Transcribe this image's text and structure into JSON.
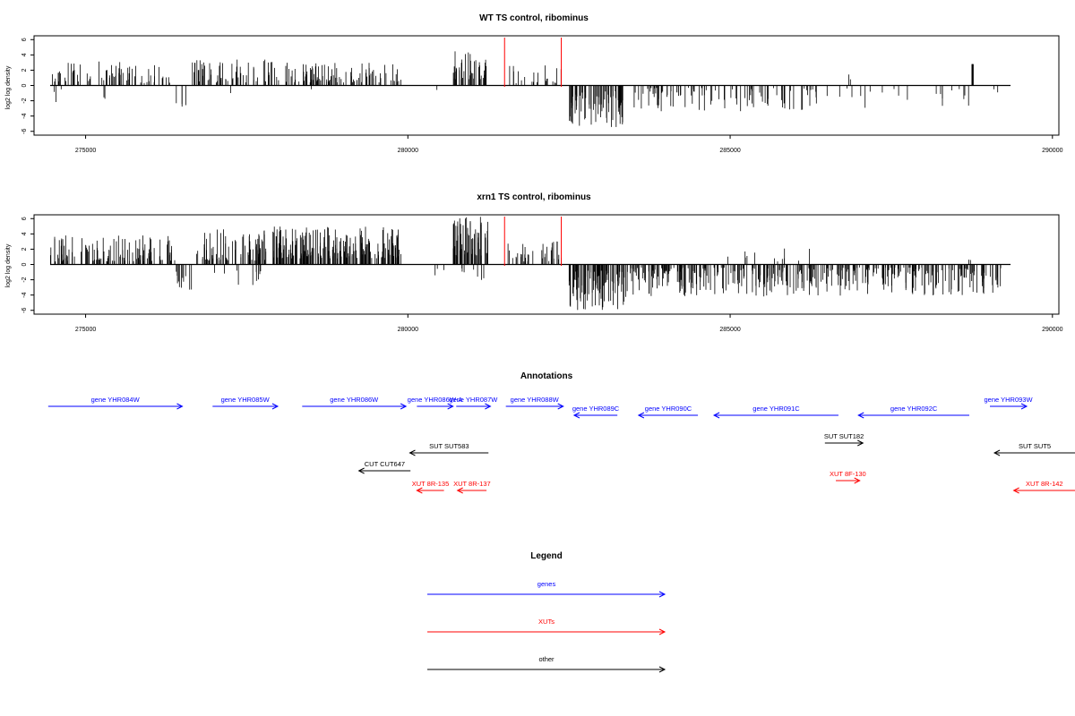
{
  "chart_data": [
    {
      "type": "bar",
      "title": "WT TS control, ribominus",
      "xlabel": "",
      "ylabel": "log2 log density",
      "xlim": [
        274200,
        290100
      ],
      "ylim": [
        -6.5,
        6.5
      ],
      "xticks": [
        275000,
        280000,
        285000,
        290000
      ],
      "yticks": [
        6,
        4,
        2,
        0,
        -2,
        -4,
        -6
      ],
      "highlight_x": [
        281500,
        282380
      ],
      "highlight_color": "#ff0000",
      "bar_color": "#000000",
      "segments": [
        {
          "x0": 274450,
          "x1": 274700,
          "density": 0.55,
          "mag": [
            0.4,
            2.2
          ],
          "sign": 1
        },
        {
          "x0": 274500,
          "x1": 274650,
          "density": 0.25,
          "mag": [
            0.5,
            2.5
          ],
          "sign": -1
        },
        {
          "x0": 274700,
          "x1": 276400,
          "density": 0.5,
          "mag": [
            0.3,
            3.2
          ],
          "sign": 1
        },
        {
          "x0": 274900,
          "x1": 275300,
          "density": 0.08,
          "mag": [
            0.3,
            1.8
          ],
          "sign": -1
        },
        {
          "x0": 276400,
          "x1": 276600,
          "density": 0.3,
          "mag": [
            0.4,
            3.3
          ],
          "sign": -1
        },
        {
          "x0": 276650,
          "x1": 278000,
          "density": 0.65,
          "mag": [
            0.4,
            3.4
          ],
          "sign": 1
        },
        {
          "x0": 277100,
          "x1": 277400,
          "density": 0.06,
          "mag": [
            0.5,
            2.4
          ],
          "sign": -1
        },
        {
          "x0": 278100,
          "x1": 279900,
          "density": 0.75,
          "mag": [
            0.4,
            3.0
          ],
          "sign": 1
        },
        {
          "x0": 278400,
          "x1": 278600,
          "density": 0.06,
          "mag": [
            0.4,
            1.6
          ],
          "sign": -1
        },
        {
          "x0": 280400,
          "x1": 280500,
          "density": 0.2,
          "mag": [
            0.5,
            1.5
          ],
          "sign": -1
        },
        {
          "x0": 280700,
          "x1": 281250,
          "density": 1.0,
          "mag": [
            0.8,
            4.5
          ],
          "sign": 1
        },
        {
          "x0": 281550,
          "x1": 282400,
          "density": 0.35,
          "mag": [
            0.3,
            2.8
          ],
          "sign": 1
        },
        {
          "x0": 282500,
          "x1": 283350,
          "density": 1.2,
          "mag": [
            0.6,
            5.6
          ],
          "sign": -1
        },
        {
          "x0": 283500,
          "x1": 286400,
          "density": 0.45,
          "mag": [
            0.3,
            3.4
          ],
          "sign": -1
        },
        {
          "x0": 286500,
          "x1": 288850,
          "density": 0.12,
          "mag": [
            0.4,
            3.0
          ],
          "sign": -1
        },
        {
          "x0": 286800,
          "x1": 287000,
          "density": 0.15,
          "mag": [
            0.8,
            2.0
          ],
          "sign": 1
        },
        {
          "x0": 288750,
          "x1": 288800,
          "density": 1.0,
          "mag": [
            2.8,
            2.8
          ],
          "sign": 1
        },
        {
          "x0": 288900,
          "x1": 289200,
          "density": 0.1,
          "mag": [
            0.5,
            2.0
          ],
          "sign": -1
        }
      ]
    },
    {
      "type": "bar",
      "title": "xrn1 TS control, ribominus",
      "xlabel": "",
      "ylabel": "log2 log density",
      "xlim": [
        274200,
        290100
      ],
      "ylim": [
        -6.5,
        6.5
      ],
      "xticks": [
        275000,
        280000,
        285000,
        290000
      ],
      "yticks": [
        6,
        4,
        2,
        0,
        -2,
        -4,
        -6
      ],
      "highlight_x": [
        281500,
        282380
      ],
      "highlight_color": "#ff0000",
      "bar_color": "#000000",
      "segments": [
        {
          "x0": 274450,
          "x1": 276400,
          "density": 0.85,
          "mag": [
            0.4,
            3.8
          ],
          "sign": 1
        },
        {
          "x0": 276400,
          "x1": 276650,
          "density": 0.6,
          "mag": [
            0.6,
            3.8
          ],
          "sign": -1
        },
        {
          "x0": 276700,
          "x1": 277800,
          "density": 1.0,
          "mag": [
            0.5,
            4.6
          ],
          "sign": 1
        },
        {
          "x0": 277000,
          "x1": 277900,
          "density": 0.15,
          "mag": [
            0.5,
            2.8
          ],
          "sign": -1
        },
        {
          "x0": 277900,
          "x1": 279900,
          "density": 1.4,
          "mag": [
            0.8,
            5.0
          ],
          "sign": 1
        },
        {
          "x0": 280400,
          "x1": 280600,
          "density": 0.2,
          "mag": [
            0.5,
            2.0
          ],
          "sign": -1
        },
        {
          "x0": 280700,
          "x1": 281250,
          "density": 1.5,
          "mag": [
            1.0,
            6.4
          ],
          "sign": 1
        },
        {
          "x0": 280800,
          "x1": 281200,
          "density": 0.25,
          "mag": [
            0.5,
            2.2
          ],
          "sign": -1
        },
        {
          "x0": 281550,
          "x1": 282400,
          "density": 0.6,
          "mag": [
            0.4,
            3.2
          ],
          "sign": 1
        },
        {
          "x0": 282500,
          "x1": 283400,
          "density": 1.4,
          "mag": [
            0.8,
            6.0
          ],
          "sign": -1
        },
        {
          "x0": 283400,
          "x1": 289200,
          "density": 0.9,
          "mag": [
            0.4,
            4.2
          ],
          "sign": -1
        },
        {
          "x0": 284800,
          "x1": 286500,
          "density": 0.1,
          "mag": [
            0.4,
            2.2
          ],
          "sign": 1
        },
        {
          "x0": 288700,
          "x1": 288800,
          "density": 0.3,
          "mag": [
            0.4,
            0.9
          ],
          "sign": 1
        }
      ]
    },
    {
      "type": "diagram",
      "title": "Annotations",
      "xlim": [
        274200,
        290100
      ],
      "features": [
        {
          "label": "gene YHR084W",
          "start": 274420,
          "end": 276500,
          "dir": 1,
          "track": 1,
          "color": "#0000ff"
        },
        {
          "label": "gene YHR085W",
          "start": 276970,
          "end": 277980,
          "dir": 1,
          "track": 1,
          "color": "#0000ff"
        },
        {
          "label": "gene YHR086W",
          "start": 278360,
          "end": 279970,
          "dir": 1,
          "track": 1,
          "color": "#0000ff"
        },
        {
          "label": "gene YHR086W-A",
          "start": 280140,
          "end": 280700,
          "dir": 1,
          "track": 1,
          "color": "#0000ff"
        },
        {
          "label": "gene YHR087W",
          "start": 280750,
          "end": 281280,
          "dir": 1,
          "track": 1,
          "color": "#0000ff"
        },
        {
          "label": "gene YHR088W",
          "start": 281520,
          "end": 282410,
          "dir": 1,
          "track": 1,
          "color": "#0000ff"
        },
        {
          "label": "gene YHR089C",
          "start": 282580,
          "end": 283250,
          "dir": -1,
          "track": 2,
          "color": "#0000ff"
        },
        {
          "label": "gene YHR090C",
          "start": 283580,
          "end": 284500,
          "dir": -1,
          "track": 2,
          "color": "#0000ff"
        },
        {
          "label": "gene YHR091C",
          "start": 284750,
          "end": 286680,
          "dir": -1,
          "track": 2,
          "color": "#0000ff"
        },
        {
          "label": "gene YHR092C",
          "start": 286990,
          "end": 288710,
          "dir": -1,
          "track": 2,
          "color": "#0000ff"
        },
        {
          "label": "gene YHR093W",
          "start": 289030,
          "end": 289600,
          "dir": 1,
          "track": 1,
          "color": "#0000ff"
        },
        {
          "label": "SUT SUT583",
          "start": 280030,
          "end": 281250,
          "dir": -1,
          "track": 3,
          "color": "#000000"
        },
        {
          "label": "SUT SUT182",
          "start": 286470,
          "end": 287060,
          "dir": 1,
          "track": 4,
          "color": "#000000"
        },
        {
          "label": "SUT SUT5",
          "start": 289100,
          "end": 290350,
          "dir": -1,
          "track": 3,
          "color": "#000000"
        },
        {
          "label": "CUT CUT647",
          "start": 279240,
          "end": 280040,
          "dir": -1,
          "track": 5,
          "color": "#000000"
        },
        {
          "label": "XUT 8R-135",
          "start": 280140,
          "end": 280560,
          "dir": -1,
          "track": 6,
          "color": "#ff0000"
        },
        {
          "label": "XUT 8R-137",
          "start": 280770,
          "end": 281220,
          "dir": -1,
          "track": 6,
          "color": "#ff0000"
        },
        {
          "label": "XUT 8F-130",
          "start": 286640,
          "end": 287010,
          "dir": 1,
          "track": 7,
          "color": "#ff0000"
        },
        {
          "label": "XUT 8R-142",
          "start": 289400,
          "end": 290350,
          "dir": -1,
          "track": 6,
          "color": "#ff0000"
        }
      ]
    },
    {
      "type": "legend",
      "title": "Legend",
      "entries": [
        {
          "label": "genes",
          "color": "#0000ff"
        },
        {
          "label": "XUTs",
          "color": "#ff0000"
        },
        {
          "label": "other",
          "color": "#000000"
        }
      ]
    }
  ]
}
